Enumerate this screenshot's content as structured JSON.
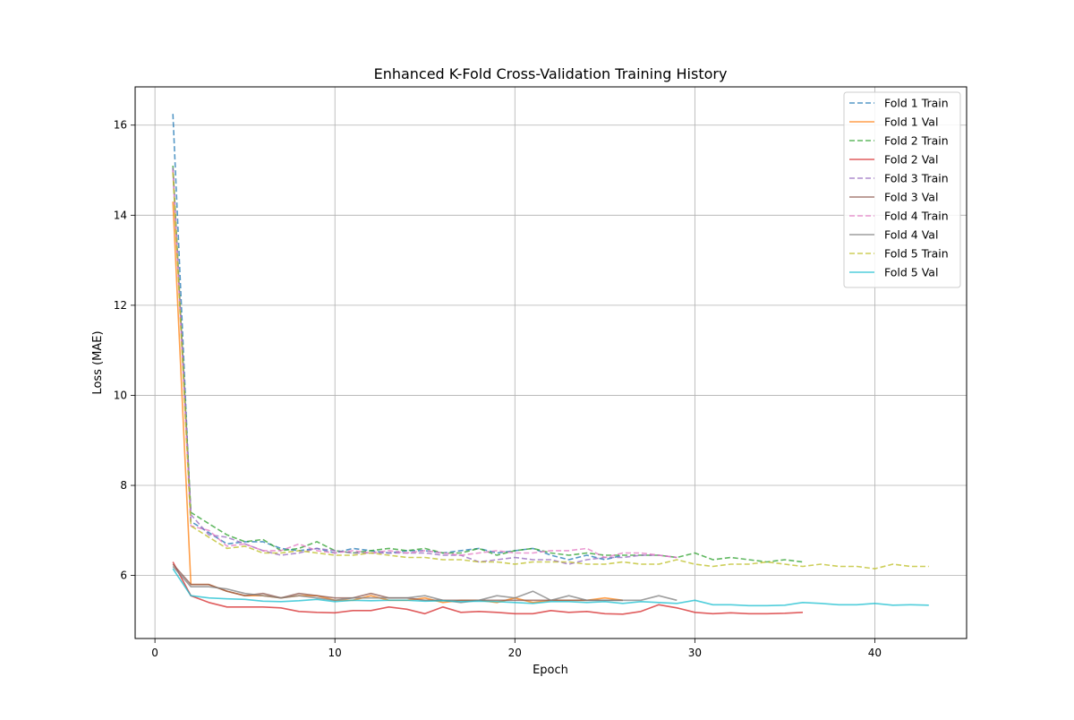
{
  "chart_data": {
    "type": "line",
    "title": "Enhanced K-Fold Cross-Validation Training History",
    "xlabel": "Epoch",
    "ylabel": "Loss (MAE)",
    "xlim": [
      -1.1,
      45.1
    ],
    "ylim": [
      4.6,
      16.85
    ],
    "xticks": [
      0,
      10,
      20,
      30,
      40
    ],
    "yticks": [
      6,
      8,
      10,
      12,
      14,
      16
    ],
    "grid": true,
    "legend_position": "upper right",
    "series": [
      {
        "name": "Fold 1 Train",
        "color": "#1f77b4",
        "style": "dashed",
        "x": [
          1,
          2,
          3,
          4,
          5,
          6,
          7,
          8,
          9,
          10,
          11,
          12,
          13,
          14,
          15,
          16,
          17,
          18,
          19,
          20,
          21,
          22,
          23,
          24,
          25,
          26
        ],
        "values": [
          16.25,
          7.2,
          6.95,
          6.7,
          6.75,
          6.75,
          6.6,
          6.55,
          6.6,
          6.5,
          6.6,
          6.55,
          6.5,
          6.55,
          6.55,
          6.5,
          6.55,
          6.6,
          6.5,
          6.55,
          6.6,
          6.45,
          6.35,
          6.45,
          6.35,
          6.45
        ]
      },
      {
        "name": "Fold 1 Val",
        "color": "#ff7f0e",
        "style": "solid",
        "x": [
          1,
          2,
          3,
          4,
          5,
          6,
          7,
          8,
          9,
          10,
          11,
          12,
          13,
          14,
          15,
          16,
          17,
          18,
          19,
          20,
          21,
          22,
          23,
          24,
          25,
          26
        ],
        "values": [
          14.3,
          5.8,
          5.8,
          5.65,
          5.55,
          5.55,
          5.5,
          5.55,
          5.55,
          5.45,
          5.45,
          5.55,
          5.45,
          5.45,
          5.5,
          5.4,
          5.45,
          5.45,
          5.4,
          5.5,
          5.4,
          5.45,
          5.45,
          5.45,
          5.5,
          5.45
        ]
      },
      {
        "name": "Fold 2 Train",
        "color": "#2ca02c",
        "style": "dashed",
        "x": [
          1,
          2,
          3,
          4,
          5,
          6,
          7,
          8,
          9,
          10,
          11,
          12,
          13,
          14,
          15,
          16,
          17,
          18,
          19,
          20,
          21,
          22,
          23,
          24,
          25,
          26,
          27,
          28,
          29,
          30,
          31,
          32,
          33,
          34,
          35,
          36
        ],
        "values": [
          15.1,
          7.4,
          7.15,
          6.9,
          6.75,
          6.8,
          6.55,
          6.6,
          6.75,
          6.55,
          6.5,
          6.55,
          6.6,
          6.55,
          6.6,
          6.5,
          6.5,
          6.6,
          6.45,
          6.55,
          6.6,
          6.5,
          6.45,
          6.5,
          6.45,
          6.45,
          6.45,
          6.45,
          6.4,
          6.5,
          6.35,
          6.4,
          6.35,
          6.3,
          6.35,
          6.3
        ]
      },
      {
        "name": "Fold 2 Val",
        "color": "#d62728",
        "style": "solid",
        "x": [
          1,
          2,
          3,
          4,
          5,
          6,
          7,
          8,
          9,
          10,
          11,
          12,
          13,
          14,
          15,
          16,
          17,
          18,
          19,
          20,
          21,
          22,
          23,
          24,
          25,
          26,
          27,
          28,
          29,
          30,
          31,
          32,
          33,
          34,
          35,
          36
        ],
        "values": [
          6.3,
          5.55,
          5.4,
          5.3,
          5.3,
          5.3,
          5.28,
          5.2,
          5.18,
          5.17,
          5.22,
          5.22,
          5.3,
          5.25,
          5.15,
          5.3,
          5.18,
          5.2,
          5.18,
          5.15,
          5.15,
          5.22,
          5.18,
          5.2,
          5.15,
          5.14,
          5.2,
          5.35,
          5.28,
          5.18,
          5.15,
          5.17,
          5.15,
          5.15,
          5.16,
          5.18
        ]
      },
      {
        "name": "Fold 3 Train",
        "color": "#9467bd",
        "style": "dashed",
        "x": [
          1,
          2,
          3,
          4,
          5,
          6,
          7,
          8,
          9,
          10,
          11,
          12,
          13,
          14,
          15,
          16,
          17,
          18,
          19,
          20,
          21,
          22,
          23,
          24,
          25,
          26,
          27,
          28,
          29
        ],
        "values": [
          15.05,
          7.35,
          6.9,
          6.85,
          6.7,
          6.55,
          6.45,
          6.5,
          6.6,
          6.55,
          6.5,
          6.5,
          6.5,
          6.5,
          6.5,
          6.45,
          6.45,
          6.3,
          6.35,
          6.4,
          6.35,
          6.35,
          6.25,
          6.35,
          6.4,
          6.4,
          6.45,
          6.45,
          6.4
        ]
      },
      {
        "name": "Fold 3 Val",
        "color": "#8c564b",
        "style": "solid",
        "x": [
          1,
          2,
          3,
          4,
          5,
          6,
          7,
          8,
          9,
          10,
          11,
          12,
          13,
          14,
          15,
          16,
          17,
          18,
          19,
          20,
          21,
          22,
          23,
          24,
          25,
          26
        ],
        "values": [
          6.25,
          5.8,
          5.8,
          5.65,
          5.55,
          5.6,
          5.5,
          5.6,
          5.55,
          5.5,
          5.5,
          5.6,
          5.5,
          5.5,
          5.45,
          5.45,
          5.45,
          5.45,
          5.45,
          5.45,
          5.45,
          5.45,
          5.45,
          5.45,
          5.45,
          5.45
        ]
      },
      {
        "name": "Fold 4 Train",
        "color": "#e377c2",
        "style": "dashed",
        "x": [
          1,
          2,
          3,
          4,
          5,
          6,
          7,
          8,
          9,
          10,
          11,
          12,
          13,
          14,
          15,
          16,
          17,
          18,
          19,
          20,
          21,
          22,
          23,
          24,
          25,
          26,
          27,
          28,
          29
        ],
        "values": [
          15.0,
          7.1,
          7.0,
          6.65,
          6.7,
          6.55,
          6.55,
          6.7,
          6.55,
          6.5,
          6.55,
          6.5,
          6.55,
          6.5,
          6.55,
          6.5,
          6.45,
          6.5,
          6.55,
          6.5,
          6.5,
          6.55,
          6.55,
          6.6,
          6.4,
          6.5,
          6.5,
          6.45,
          6.4
        ]
      },
      {
        "name": "Fold 4 Val",
        "color": "#7f7f7f",
        "style": "solid",
        "x": [
          1,
          2,
          3,
          4,
          5,
          6,
          7,
          8,
          9,
          10,
          11,
          12,
          13,
          14,
          15,
          16,
          17,
          18,
          19,
          20,
          21,
          22,
          23,
          24,
          25,
          26,
          27,
          28,
          29
        ],
        "values": [
          6.2,
          5.75,
          5.75,
          5.7,
          5.6,
          5.55,
          5.5,
          5.55,
          5.5,
          5.45,
          5.5,
          5.5,
          5.5,
          5.5,
          5.55,
          5.45,
          5.4,
          5.45,
          5.55,
          5.5,
          5.65,
          5.45,
          5.55,
          5.45,
          5.45,
          5.45,
          5.45,
          5.55,
          5.45
        ]
      },
      {
        "name": "Fold 5 Train",
        "color": "#bcbd22",
        "style": "dashed",
        "x": [
          1,
          2,
          3,
          4,
          5,
          6,
          7,
          8,
          9,
          10,
          11,
          12,
          13,
          14,
          15,
          16,
          17,
          18,
          19,
          20,
          21,
          22,
          23,
          24,
          25,
          26,
          27,
          28,
          29,
          30,
          31,
          32,
          33,
          34,
          35,
          36,
          37,
          38,
          39,
          40,
          41,
          42,
          43
        ],
        "values": [
          14.95,
          7.1,
          6.85,
          6.6,
          6.65,
          6.5,
          6.5,
          6.55,
          6.5,
          6.45,
          6.45,
          6.5,
          6.45,
          6.4,
          6.4,
          6.35,
          6.35,
          6.3,
          6.3,
          6.25,
          6.3,
          6.3,
          6.3,
          6.25,
          6.25,
          6.3,
          6.25,
          6.25,
          6.35,
          6.25,
          6.2,
          6.25,
          6.25,
          6.3,
          6.25,
          6.2,
          6.25,
          6.2,
          6.2,
          6.15,
          6.25,
          6.2,
          6.2
        ]
      },
      {
        "name": "Fold 5 Val",
        "color": "#17becf",
        "style": "solid",
        "x": [
          1,
          2,
          3,
          4,
          5,
          6,
          7,
          8,
          9,
          10,
          11,
          12,
          13,
          14,
          15,
          16,
          17,
          18,
          19,
          20,
          21,
          22,
          23,
          24,
          25,
          26,
          27,
          28,
          29,
          30,
          31,
          32,
          33,
          34,
          35,
          36,
          37,
          38,
          39,
          40,
          41,
          42,
          43
        ],
        "values": [
          6.15,
          5.55,
          5.5,
          5.48,
          5.47,
          5.43,
          5.42,
          5.44,
          5.47,
          5.42,
          5.45,
          5.44,
          5.45,
          5.45,
          5.43,
          5.44,
          5.42,
          5.43,
          5.42,
          5.4,
          5.38,
          5.42,
          5.42,
          5.4,
          5.42,
          5.38,
          5.42,
          5.4,
          5.38,
          5.45,
          5.35,
          5.35,
          5.33,
          5.33,
          5.34,
          5.4,
          5.38,
          5.35,
          5.35,
          5.38,
          5.34,
          5.35,
          5.34
        ]
      }
    ]
  }
}
